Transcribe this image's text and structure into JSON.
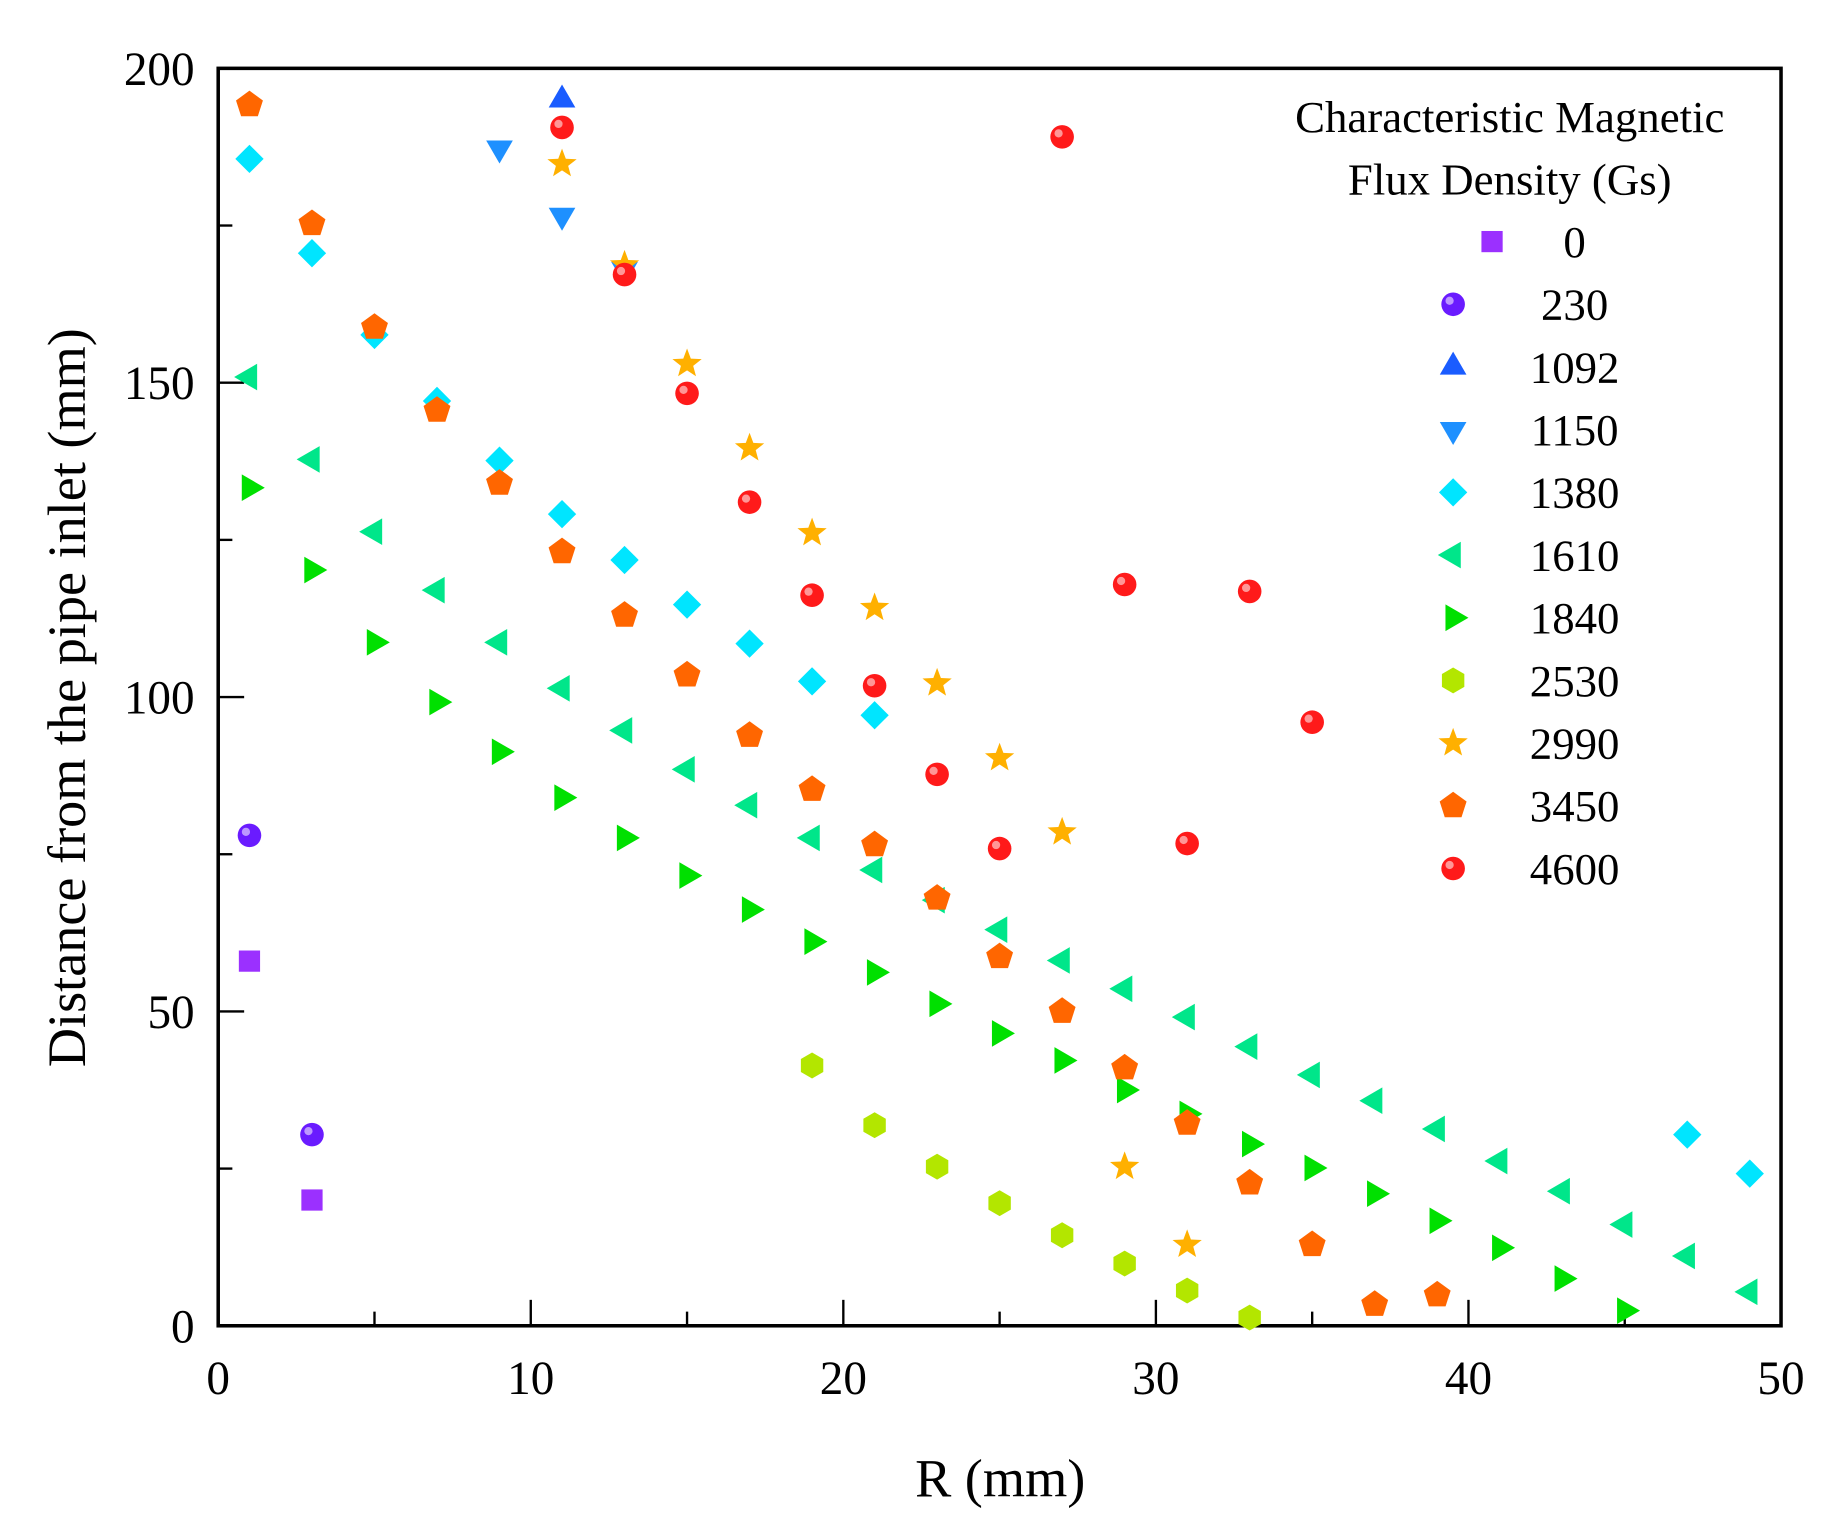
{
  "chart_data": {
    "type": "scatter",
    "title": "",
    "xlabel": "R (mm)",
    "ylabel": "Distance from the pipe inlet (mm)",
    "xlim": [
      0,
      50
    ],
    "ylim": [
      0,
      200
    ],
    "xticks": [
      "0",
      "10",
      "20",
      "30",
      "40",
      "50"
    ],
    "yticks": [
      "0",
      "50",
      "100",
      "150",
      "200"
    ],
    "grid": false,
    "legend": {
      "placement": "top-right",
      "title_line1": "Characteristic Magnetic",
      "title_line2": "Flux Density (Gs)"
    },
    "series": [
      {
        "name": "0",
        "marker": "square",
        "color": "#9b30ff",
        "points": [
          [
            1,
            58
          ],
          [
            3,
            20
          ]
        ]
      },
      {
        "name": "230",
        "marker": "circle",
        "color": "#6a1bff",
        "points": [
          [
            1,
            78
          ],
          [
            3,
            30.4
          ]
        ]
      },
      {
        "name": "1092",
        "marker": "triangle-up",
        "color": "#1a5cff",
        "points": [
          [
            11,
            195
          ]
        ]
      },
      {
        "name": "1150",
        "marker": "triangle-down",
        "color": "#1e90ff",
        "points": [
          [
            9,
            187.3
          ],
          [
            11,
            176.6
          ],
          [
            13,
            168
          ]
        ]
      },
      {
        "name": "1380",
        "marker": "diamond",
        "color": "#00e5ff",
        "points": [
          [
            1,
            185.6
          ],
          [
            3,
            170.6
          ],
          [
            5,
            157.6
          ],
          [
            7,
            147.1
          ],
          [
            9,
            137.6
          ],
          [
            11,
            129.1
          ],
          [
            13,
            121.8
          ],
          [
            15,
            114.7
          ],
          [
            17,
            108.5
          ],
          [
            19,
            102.5
          ],
          [
            21,
            97.1
          ],
          [
            47,
            30.4
          ],
          [
            49,
            24.2
          ]
        ]
      },
      {
        "name": "1610",
        "marker": "triangle-left",
        "color": "#00e68a",
        "points": [
          [
            1,
            150.9
          ],
          [
            3,
            137.8
          ],
          [
            5,
            126.3
          ],
          [
            7,
            117
          ],
          [
            9,
            108.7
          ],
          [
            11,
            101.4
          ],
          [
            13,
            94.7
          ],
          [
            15,
            88.5
          ],
          [
            17,
            82.8
          ],
          [
            19,
            77.6
          ],
          [
            21,
            72.5
          ],
          [
            23,
            67.7
          ],
          [
            25,
            63
          ],
          [
            27,
            58.1
          ],
          [
            29,
            53.6
          ],
          [
            31,
            49.1
          ],
          [
            33,
            44.4
          ],
          [
            35,
            39.9
          ],
          [
            37,
            35.8
          ],
          [
            39,
            31.3
          ],
          [
            41,
            26.2
          ],
          [
            43,
            21.4
          ],
          [
            45,
            16.1
          ],
          [
            47,
            11.1
          ],
          [
            49,
            5.4
          ]
        ]
      },
      {
        "name": "1840",
        "marker": "triangle-right",
        "color": "#00e000",
        "points": [
          [
            1,
            133.3
          ],
          [
            3,
            120.2
          ],
          [
            5,
            108.7
          ],
          [
            7,
            99.2
          ],
          [
            9,
            91.3
          ],
          [
            11,
            84
          ],
          [
            13,
            77.6
          ],
          [
            15,
            71.6
          ],
          [
            17,
            66.2
          ],
          [
            19,
            61.1
          ],
          [
            21,
            56.2
          ],
          [
            23,
            51.2
          ],
          [
            25,
            46.5
          ],
          [
            27,
            42.2
          ],
          [
            29,
            37.5
          ],
          [
            31,
            33.7
          ],
          [
            33,
            28.9
          ],
          [
            35,
            25.1
          ],
          [
            37,
            21
          ],
          [
            39,
            16.7
          ],
          [
            41,
            12.4
          ],
          [
            43,
            7.5
          ],
          [
            45,
            2.4
          ]
        ]
      },
      {
        "name": "2530",
        "marker": "hexagon",
        "color": "#b3e600",
        "points": [
          [
            19,
            41.4
          ],
          [
            21,
            31.9
          ],
          [
            23,
            25.3
          ],
          [
            25,
            19.5
          ],
          [
            27,
            14.4
          ],
          [
            29,
            9.9
          ],
          [
            31,
            5.6
          ],
          [
            33,
            1.3
          ]
        ]
      },
      {
        "name": "2990",
        "marker": "star",
        "color": "#ffb000",
        "points": [
          [
            11,
            184.8
          ],
          [
            13,
            168.7
          ],
          [
            15,
            153
          ],
          [
            17,
            139.6
          ],
          [
            19,
            126.1
          ],
          [
            21,
            114.2
          ],
          [
            23,
            102.2
          ],
          [
            25,
            90.3
          ],
          [
            27,
            78.5
          ],
          [
            29,
            25.3
          ],
          [
            31,
            12.9
          ]
        ]
      },
      {
        "name": "3450",
        "marker": "pentagon",
        "color": "#ff6600",
        "points": [
          [
            1,
            194.2
          ],
          [
            3,
            175.3
          ],
          [
            5,
            158.8
          ],
          [
            7,
            145.6
          ],
          [
            9,
            134
          ],
          [
            11,
            123.1
          ],
          [
            13,
            113
          ],
          [
            15,
            103.5
          ],
          [
            17,
            93.9
          ],
          [
            19,
            85.3
          ],
          [
            21,
            76.5
          ],
          [
            23,
            68
          ],
          [
            25,
            58.7
          ],
          [
            27,
            50
          ],
          [
            29,
            41
          ],
          [
            31,
            32.2
          ],
          [
            33,
            22.7
          ],
          [
            35,
            12.9
          ],
          [
            37,
            3.4
          ],
          [
            39,
            4.9
          ]
        ]
      },
      {
        "name": "4600",
        "marker": "circle",
        "color": "#ff1a1a",
        "points": [
          [
            11,
            190.6
          ],
          [
            13,
            167.2
          ],
          [
            15,
            148.3
          ],
          [
            17,
            131
          ],
          [
            19,
            116.2
          ],
          [
            21,
            101.8
          ],
          [
            23,
            87.7
          ],
          [
            25,
            75.9
          ],
          [
            27,
            189.1
          ],
          [
            29,
            117.9
          ],
          [
            31,
            76.7
          ],
          [
            33,
            116.8
          ],
          [
            35,
            96
          ]
        ]
      }
    ]
  }
}
